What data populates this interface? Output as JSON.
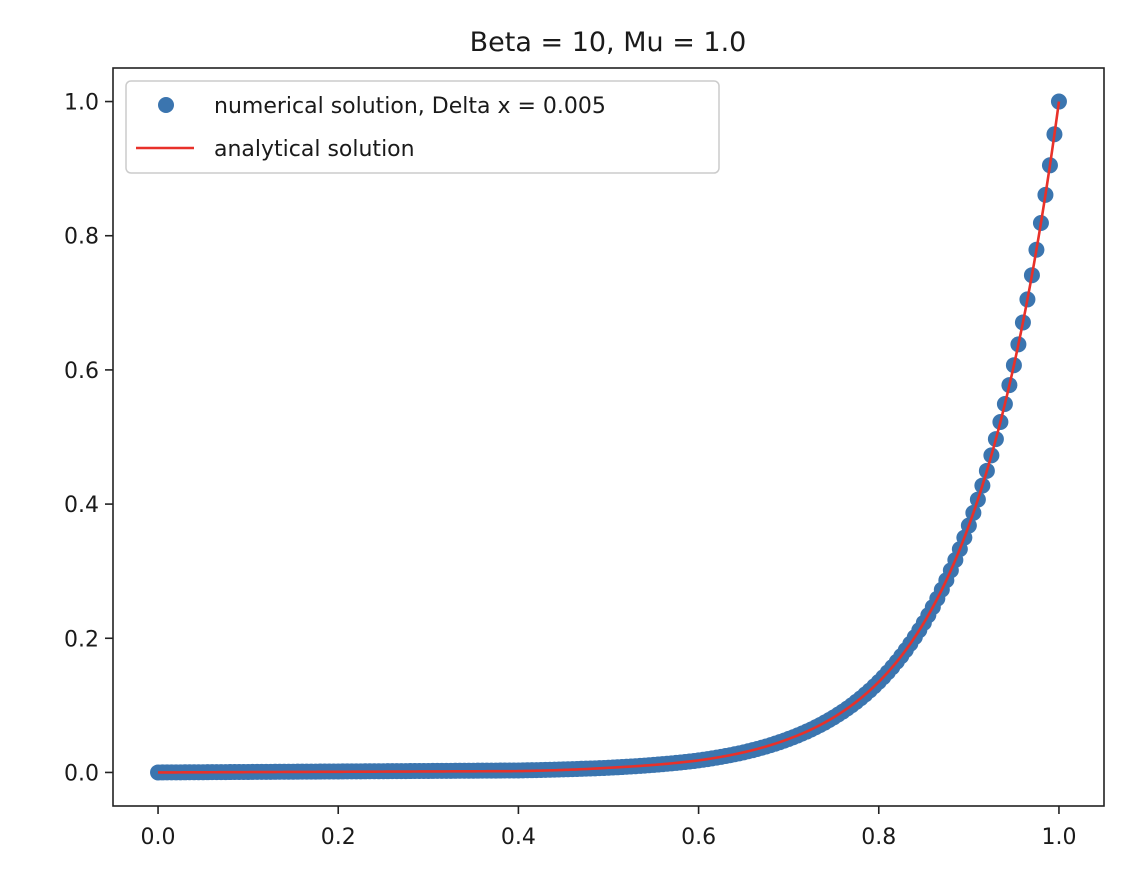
{
  "chart_data": {
    "type": "line",
    "title": "Beta = 10, Mu = 1.0",
    "xlabel": "",
    "ylabel": "",
    "xlim": [
      -0.05,
      1.05
    ],
    "ylim": [
      -0.05,
      1.05
    ],
    "xticks": [
      0.0,
      0.2,
      0.4,
      0.6,
      0.8,
      1.0
    ],
    "xtick_labels": [
      "0.0",
      "0.2",
      "0.4",
      "0.6",
      "0.8",
      "1.0"
    ],
    "yticks": [
      0.0,
      0.2,
      0.4,
      0.6,
      0.8,
      1.0
    ],
    "ytick_labels": [
      "0.0",
      "0.2",
      "0.4",
      "0.6",
      "0.8",
      "1.0"
    ],
    "grid": false,
    "legend_position": "top-left",
    "series": [
      {
        "name": "numerical solution, Delta x = 0.005",
        "kind": "scatter",
        "color": "#3b75af",
        "x_start": 0.0,
        "x_end": 1.0,
        "x_step": 0.005,
        "sampled_points": [
          {
            "x": 0.0,
            "y": 0.0
          },
          {
            "x": 0.4,
            "y": 0.003
          },
          {
            "x": 0.5,
            "y": 0.007
          },
          {
            "x": 0.6,
            "y": 0.018
          },
          {
            "x": 0.7,
            "y": 0.05
          },
          {
            "x": 0.8,
            "y": 0.135
          },
          {
            "x": 0.85,
            "y": 0.223
          },
          {
            "x": 0.9,
            "y": 0.368
          },
          {
            "x": 0.95,
            "y": 0.607
          },
          {
            "x": 1.0,
            "y": 1.0
          }
        ]
      },
      {
        "name": "analytical solution",
        "kind": "line",
        "color": "#e8312a",
        "x_start": 0.0,
        "x_end": 1.0,
        "sampled_points": [
          {
            "x": 0.0,
            "y": 0.0
          },
          {
            "x": 0.4,
            "y": 0.002
          },
          {
            "x": 0.5,
            "y": 0.007
          },
          {
            "x": 0.6,
            "y": 0.018
          },
          {
            "x": 0.7,
            "y": 0.05
          },
          {
            "x": 0.8,
            "y": 0.135
          },
          {
            "x": 0.85,
            "y": 0.223
          },
          {
            "x": 0.9,
            "y": 0.368
          },
          {
            "x": 0.95,
            "y": 0.607
          },
          {
            "x": 1.0,
            "y": 1.0
          }
        ]
      }
    ]
  }
}
